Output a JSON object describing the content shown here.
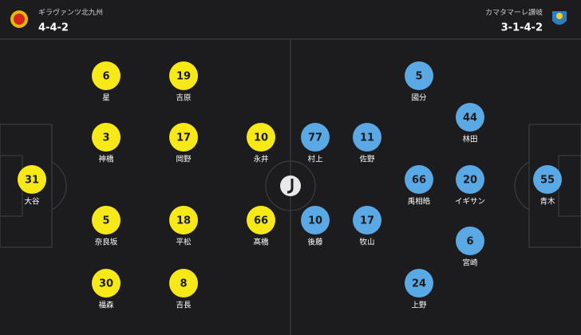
{
  "home": {
    "team": "ギラヴァンツ北九州",
    "formation": "4-4-2",
    "players": [
      {
        "number": 31,
        "name": "大谷"
      },
      {
        "number": 6,
        "name": "星"
      },
      {
        "number": 3,
        "name": "神橋"
      },
      {
        "number": 5,
        "name": "奈良坂"
      },
      {
        "number": 30,
        "name": "福森"
      },
      {
        "number": 19,
        "name": "吉原"
      },
      {
        "number": 17,
        "name": "岡野"
      },
      {
        "number": 18,
        "name": "平松"
      },
      {
        "number": 8,
        "name": "吉長"
      },
      {
        "number": 10,
        "name": "永井"
      },
      {
        "number": 66,
        "name": "髙橋"
      }
    ]
  },
  "away": {
    "team": "カマタマーレ讃岐",
    "formation": "3-1-4-2",
    "players": [
      {
        "number": 55,
        "name": "青木"
      },
      {
        "number": 44,
        "name": "林田"
      },
      {
        "number": 20,
        "name": "イギサン"
      },
      {
        "number": 6,
        "name": "宮崎"
      },
      {
        "number": 5,
        "name": "國分"
      },
      {
        "number": 66,
        "name": "禹相皓"
      },
      {
        "number": 24,
        "name": "上野"
      },
      {
        "number": 11,
        "name": "佐野"
      },
      {
        "number": 17,
        "name": "牧山"
      },
      {
        "number": 77,
        "name": "村上"
      },
      {
        "number": 10,
        "name": "後藤"
      }
    ]
  }
}
